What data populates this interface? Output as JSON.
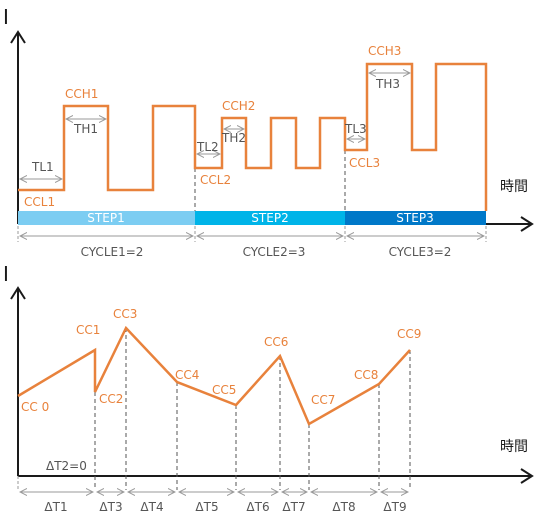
{
  "colors": {
    "waveform": "#e8823c",
    "axis": "#1a1a1a",
    "dimension": "#999999",
    "label_gray": "#555555",
    "step1": "#7ccdf2",
    "step2": "#00b4e8",
    "step3": "#0078c8"
  },
  "top": {
    "y_axis_label": "I",
    "x_axis_label": "時間",
    "labels": {
      "ccl1": "CCL1",
      "cch1": "CCH1",
      "tl1": "TL1",
      "th1": "TH1",
      "tl2": "TL2",
      "ccl2": "CCL2",
      "cch2": "CCH2",
      "th2": "TH2",
      "tl3": "TL3",
      "ccl3": "CCL3",
      "cch3": "CCH3",
      "th3": "TH3"
    },
    "steps": [
      "STEP1",
      "STEP2",
      "STEP3"
    ],
    "cycles": [
      "CYCLE1=2",
      "CYCLE2=3",
      "CYCLE3=2"
    ]
  },
  "bottom": {
    "y_axis_label": "I",
    "x_axis_label": "時間",
    "points": [
      "CC 0",
      "CC1",
      "CC2",
      "CC3",
      "CC4",
      "CC5",
      "CC6",
      "CC7",
      "CC8",
      "CC9"
    ],
    "zero_interval": "ΔT2=0",
    "intervals": [
      "ΔT1",
      "ΔT3",
      "ΔT4",
      "ΔT5",
      "ΔT6",
      "ΔT7",
      "ΔT8",
      "ΔT9"
    ]
  }
}
